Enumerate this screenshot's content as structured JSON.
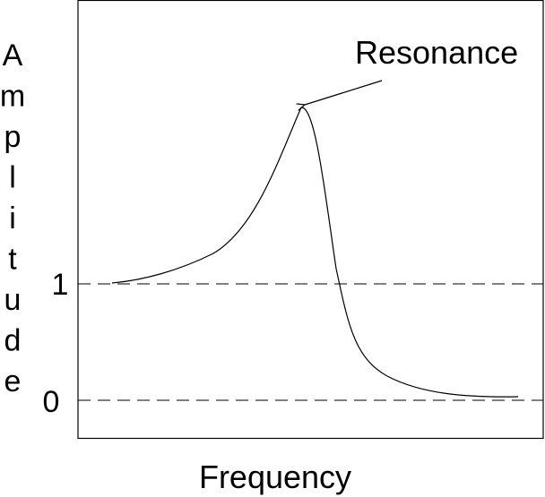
{
  "diagram": {
    "y_axis_label": "Amplitude",
    "x_axis_label": "Frequency",
    "reference_lines": [
      {
        "label": "1",
        "value": 1
      },
      {
        "label": "0",
        "value": 0
      }
    ],
    "annotation": {
      "label": "Resonance"
    },
    "colors": {
      "line": "#000000",
      "background": "#ffffff"
    }
  }
}
